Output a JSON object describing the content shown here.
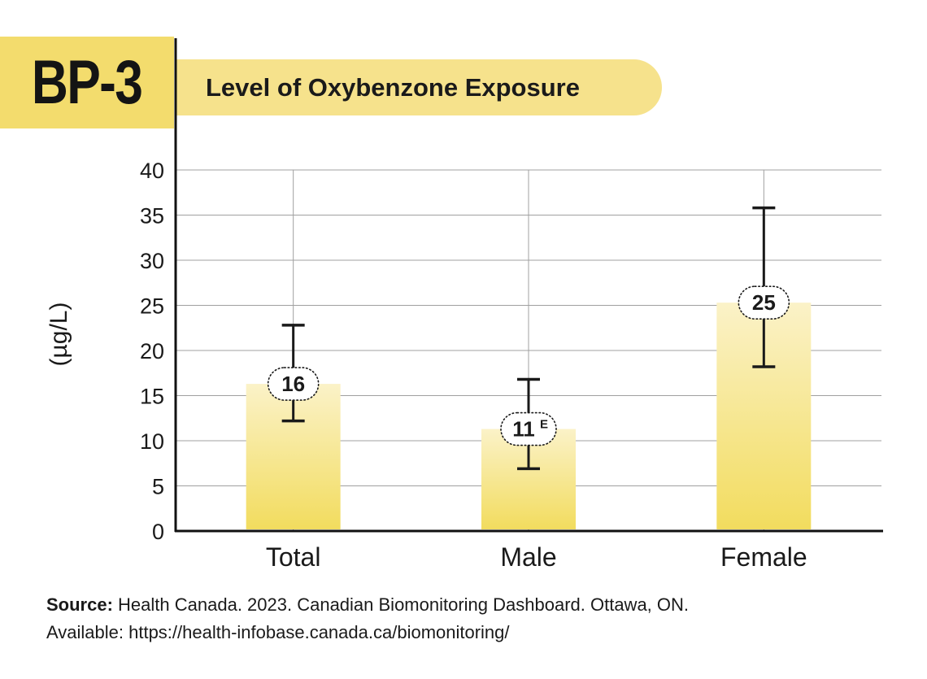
{
  "badge": {
    "label": "BP-3"
  },
  "title": "Level of Oxybenzone Exposure",
  "source": {
    "label": "Source:",
    "line1": "Health Canada. 2023. Canadian Biomonitoring Dashboard. Ottawa, ON.",
    "line2": "Available: https://health-infobase.canada.ca/biomonitoring/"
  },
  "colors": {
    "accent": "#f3dc6d",
    "bar_top": "#fbf2c8",
    "bar_bottom": "#f2dc5e",
    "grid": "#a0a0a0",
    "text": "#1a1a1a"
  },
  "chart_data": {
    "type": "bar",
    "title": "Level of Oxybenzone Exposure",
    "categories": [
      "Total",
      "Male",
      "Female"
    ],
    "values": [
      16,
      11,
      25
    ],
    "bar_values": [
      16.3,
      11.3,
      25.3
    ],
    "value_labels": [
      "16",
      "11",
      "25"
    ],
    "value_superscripts": [
      "",
      "E",
      ""
    ],
    "error_low": [
      12.2,
      6.9,
      18.2
    ],
    "error_high": [
      22.8,
      16.8,
      35.8
    ],
    "ylabel": "(µg/L)",
    "xlabel": "",
    "ylim": [
      0,
      40
    ],
    "yticks": [
      0,
      5,
      10,
      15,
      20,
      25,
      30,
      35,
      40
    ],
    "grid": true
  }
}
